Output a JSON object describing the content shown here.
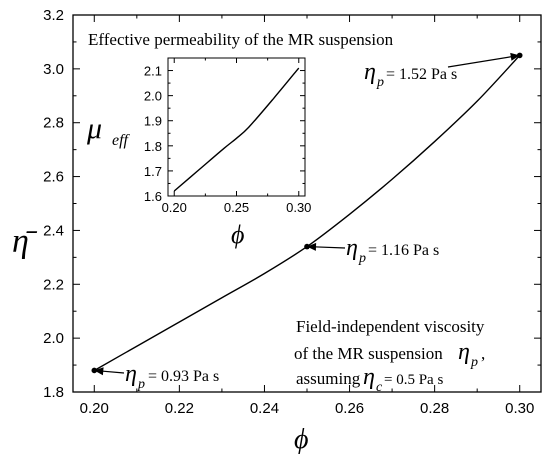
{
  "chart_data": [
    {
      "type": "line",
      "ylabel": "η̄",
      "xlabel": "ϕ",
      "xlim": [
        0.195,
        0.305
      ],
      "ylim": [
        1.8,
        3.2
      ],
      "x_ticks": [
        "0.20",
        "0.22",
        "0.24",
        "0.26",
        "0.28",
        "0.30"
      ],
      "y_ticks": [
        "1.8",
        "2.0",
        "2.2",
        "2.4",
        "2.6",
        "2.8",
        "3.0",
        "3.2"
      ],
      "grid": false,
      "series": [
        {
          "x": [
            0.2,
            0.21,
            0.22,
            0.23,
            0.24,
            0.25,
            0.26,
            0.27,
            0.28,
            0.29,
            0.3
          ],
          "y": [
            1.88,
            1.97,
            2.06,
            2.15,
            2.24,
            2.34,
            2.46,
            2.59,
            2.73,
            2.88,
            3.05
          ]
        }
      ],
      "markers": [
        {
          "x": 0.2,
          "y": 1.88,
          "label": "= 0.93 Pa s"
        },
        {
          "x": 0.25,
          "y": 2.34,
          "label": "= 1.16 Pa s"
        },
        {
          "x": 0.3,
          "y": 3.05,
          "label": "= 1.52 Pa s"
        }
      ],
      "annotations": {
        "eta_p_symbol": "η",
        "eta_p_sub": "p",
        "eta_c_sub": "c",
        "note_line1": "Field-independent viscosity",
        "note_line2": "of the MR suspension",
        "note_line3_prefix": "assuming",
        "note_eta_c_value": "= 0.5 Pa s"
      }
    },
    {
      "type": "line",
      "title": "Effective permeability of the MR suspension",
      "ylabel": "μ",
      "ylabel_sub": "eff",
      "xlabel": "ϕ",
      "xlim": [
        0.195,
        0.305
      ],
      "ylim": [
        1.6,
        2.15
      ],
      "x_ticks": [
        "0.20",
        "0.25",
        "0.30"
      ],
      "y_ticks": [
        "1.6",
        "1.7",
        "1.8",
        "1.9",
        "2.0",
        "2.1"
      ],
      "grid": false,
      "series": [
        {
          "x": [
            0.2,
            0.22,
            0.24,
            0.25,
            0.26,
            0.28,
            0.3
          ],
          "y": [
            1.62,
            1.705,
            1.79,
            1.83,
            1.875,
            1.99,
            2.11
          ]
        }
      ]
    }
  ]
}
